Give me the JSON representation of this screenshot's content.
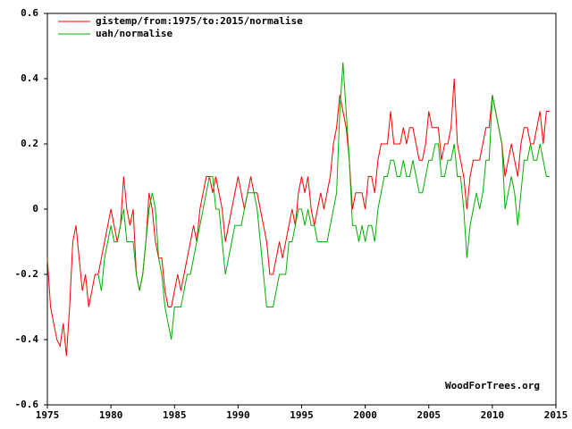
{
  "chart_data": {
    "type": "line",
    "watermark": "WoodForTrees.org",
    "legend": "upper left",
    "x": [
      1975,
      1975.25,
      1975.5,
      1975.75,
      1976,
      1976.25,
      1976.5,
      1976.75,
      1977,
      1977.25,
      1977.5,
      1977.75,
      1978,
      1978.25,
      1978.5,
      1978.75,
      1979,
      1979.25,
      1979.5,
      1979.75,
      1980,
      1980.25,
      1980.5,
      1980.75,
      1981,
      1981.25,
      1981.5,
      1981.75,
      1982,
      1982.25,
      1982.5,
      1982.75,
      1983,
      1983.25,
      1983.5,
      1983.75,
      1984,
      1984.25,
      1984.5,
      1984.75,
      1985,
      1985.25,
      1985.5,
      1985.75,
      1986,
      1986.25,
      1986.5,
      1986.75,
      1987,
      1987.25,
      1987.5,
      1987.75,
      1988,
      1988.25,
      1988.5,
      1988.75,
      1989,
      1989.25,
      1989.5,
      1989.75,
      1990,
      1990.25,
      1990.5,
      1990.75,
      1991,
      1991.25,
      1991.5,
      1991.75,
      1992,
      1992.25,
      1992.5,
      1992.75,
      1993,
      1993.25,
      1993.5,
      1993.75,
      1994,
      1994.25,
      1994.5,
      1994.75,
      1995,
      1995.25,
      1995.5,
      1995.75,
      1996,
      1996.25,
      1996.5,
      1996.75,
      1997,
      1997.25,
      1997.5,
      1997.75,
      1998,
      1998.25,
      1998.5,
      1998.75,
      1999,
      1999.25,
      1999.5,
      1999.75,
      2000,
      2000.25,
      2000.5,
      2000.75,
      2001,
      2001.25,
      2001.5,
      2001.75,
      2002,
      2002.25,
      2002.5,
      2002.75,
      2003,
      2003.25,
      2003.5,
      2003.75,
      2004,
      2004.25,
      2004.5,
      2004.75,
      2005,
      2005.25,
      2005.5,
      2005.75,
      2006,
      2006.25,
      2006.5,
      2006.75,
      2007,
      2007.25,
      2007.5,
      2007.75,
      2008,
      2008.25,
      2008.5,
      2008.75,
      2009,
      2009.25,
      2009.5,
      2009.75,
      2010,
      2010.25,
      2010.5,
      2010.75,
      2011,
      2011.25,
      2011.5,
      2011.75,
      2012,
      2012.25,
      2012.5,
      2012.75,
      2013,
      2013.25,
      2013.5,
      2013.75,
      2014,
      2014.25,
      2014.5
    ],
    "series": [
      {
        "name": "gistemp/from:1975/to:2015/normalise",
        "color": "#ff0000",
        "values": [
          -0.15,
          -0.3,
          -0.35,
          -0.4,
          -0.42,
          -0.35,
          -0.45,
          -0.3,
          -0.1,
          -0.05,
          -0.15,
          -0.25,
          -0.2,
          -0.3,
          -0.25,
          -0.2,
          -0.2,
          -0.15,
          -0.1,
          -0.05,
          0,
          -0.05,
          -0.1,
          -0.05,
          0.1,
          0,
          -0.05,
          0,
          -0.2,
          -0.25,
          -0.2,
          -0.1,
          0.05,
          0,
          -0.1,
          -0.15,
          -0.15,
          -0.25,
          -0.3,
          -0.3,
          -0.25,
          -0.2,
          -0.25,
          -0.2,
          -0.15,
          -0.1,
          -0.05,
          -0.1,
          0,
          0.05,
          0.1,
          0.1,
          0.05,
          0.1,
          0.05,
          0,
          -0.1,
          -0.05,
          0,
          0.05,
          0.1,
          0.05,
          0,
          0.05,
          0.1,
          0.05,
          0.05,
          0,
          -0.05,
          -0.1,
          -0.2,
          -0.2,
          -0.15,
          -0.1,
          -0.15,
          -0.1,
          -0.05,
          0,
          -0.05,
          0.05,
          0.1,
          0.05,
          0.1,
          0,
          -0.05,
          0,
          0.05,
          0,
          0.05,
          0.1,
          0.2,
          0.25,
          0.35,
          0.3,
          0.25,
          0.15,
          0,
          0.05,
          0.05,
          0.05,
          0,
          0.1,
          0.1,
          0.05,
          0.15,
          0.2,
          0.2,
          0.2,
          0.3,
          0.2,
          0.2,
          0.2,
          0.25,
          0.2,
          0.25,
          0.25,
          0.2,
          0.15,
          0.15,
          0.2,
          0.3,
          0.25,
          0.25,
          0.25,
          0.15,
          0.2,
          0.2,
          0.25,
          0.4,
          0.2,
          0.15,
          0.1,
          0,
          0.1,
          0.15,
          0.15,
          0.15,
          0.2,
          0.25,
          0.25,
          0.35,
          0.3,
          0.25,
          0.2,
          0.1,
          0.15,
          0.2,
          0.15,
          0.1,
          0.2,
          0.25,
          0.25,
          0.2,
          0.2,
          0.25,
          0.3,
          0.2,
          0.3,
          0.3
        ]
      },
      {
        "name": "uah/normalise",
        "color": "#00b000",
        "values": [
          null,
          null,
          null,
          null,
          null,
          null,
          null,
          null,
          null,
          null,
          null,
          null,
          null,
          null,
          null,
          null,
          -0.2,
          -0.25,
          -0.15,
          -0.1,
          -0.05,
          -0.1,
          -0.1,
          -0.05,
          0,
          -0.1,
          -0.1,
          -0.1,
          -0.2,
          -0.25,
          -0.2,
          -0.1,
          0,
          0.05,
          0,
          -0.15,
          -0.2,
          -0.3,
          -0.35,
          -0.4,
          -0.3,
          -0.3,
          -0.3,
          -0.25,
          -0.2,
          -0.2,
          -0.15,
          -0.1,
          -0.05,
          0,
          0.05,
          0.1,
          0.1,
          0,
          0,
          -0.1,
          -0.2,
          -0.15,
          -0.1,
          -0.05,
          -0.05,
          -0.05,
          0,
          0.05,
          0.05,
          0.05,
          0,
          -0.1,
          -0.2,
          -0.3,
          -0.3,
          -0.3,
          -0.25,
          -0.2,
          -0.2,
          -0.2,
          -0.1,
          -0.1,
          -0.05,
          0,
          0,
          -0.05,
          0,
          -0.05,
          -0.05,
          -0.1,
          -0.1,
          -0.1,
          -0.1,
          -0.05,
          0,
          0.05,
          0.3,
          0.45,
          0.3,
          0.15,
          -0.05,
          -0.05,
          -0.1,
          -0.05,
          -0.1,
          -0.05,
          -0.05,
          -0.1,
          0,
          0.05,
          0.1,
          0.1,
          0.15,
          0.15,
          0.1,
          0.1,
          0.15,
          0.1,
          0.1,
          0.15,
          0.1,
          0.05,
          0.05,
          0.1,
          0.15,
          0.15,
          0.2,
          0.2,
          0.1,
          0.1,
          0.15,
          0.15,
          0.2,
          0.1,
          0.1,
          0,
          -0.15,
          -0.05,
          0,
          0.05,
          0,
          0.05,
          0.15,
          0.15,
          0.35,
          0.3,
          0.25,
          0.2,
          0,
          0.05,
          0.1,
          0.05,
          -0.05,
          0.05,
          0.15,
          0.15,
          0.2,
          0.15,
          0.15,
          0.2,
          0.15,
          0.1,
          0.1
        ]
      }
    ],
    "xlim": [
      1975,
      2015
    ],
    "xticks": [
      1975,
      1980,
      1985,
      1990,
      1995,
      2000,
      2005,
      2010,
      2015
    ],
    "ylim": [
      -0.6,
      0.6
    ],
    "yticks": [
      -0.6,
      -0.4,
      -0.2,
      0,
      0.2,
      0.4,
      0.6
    ],
    "grid": false
  }
}
